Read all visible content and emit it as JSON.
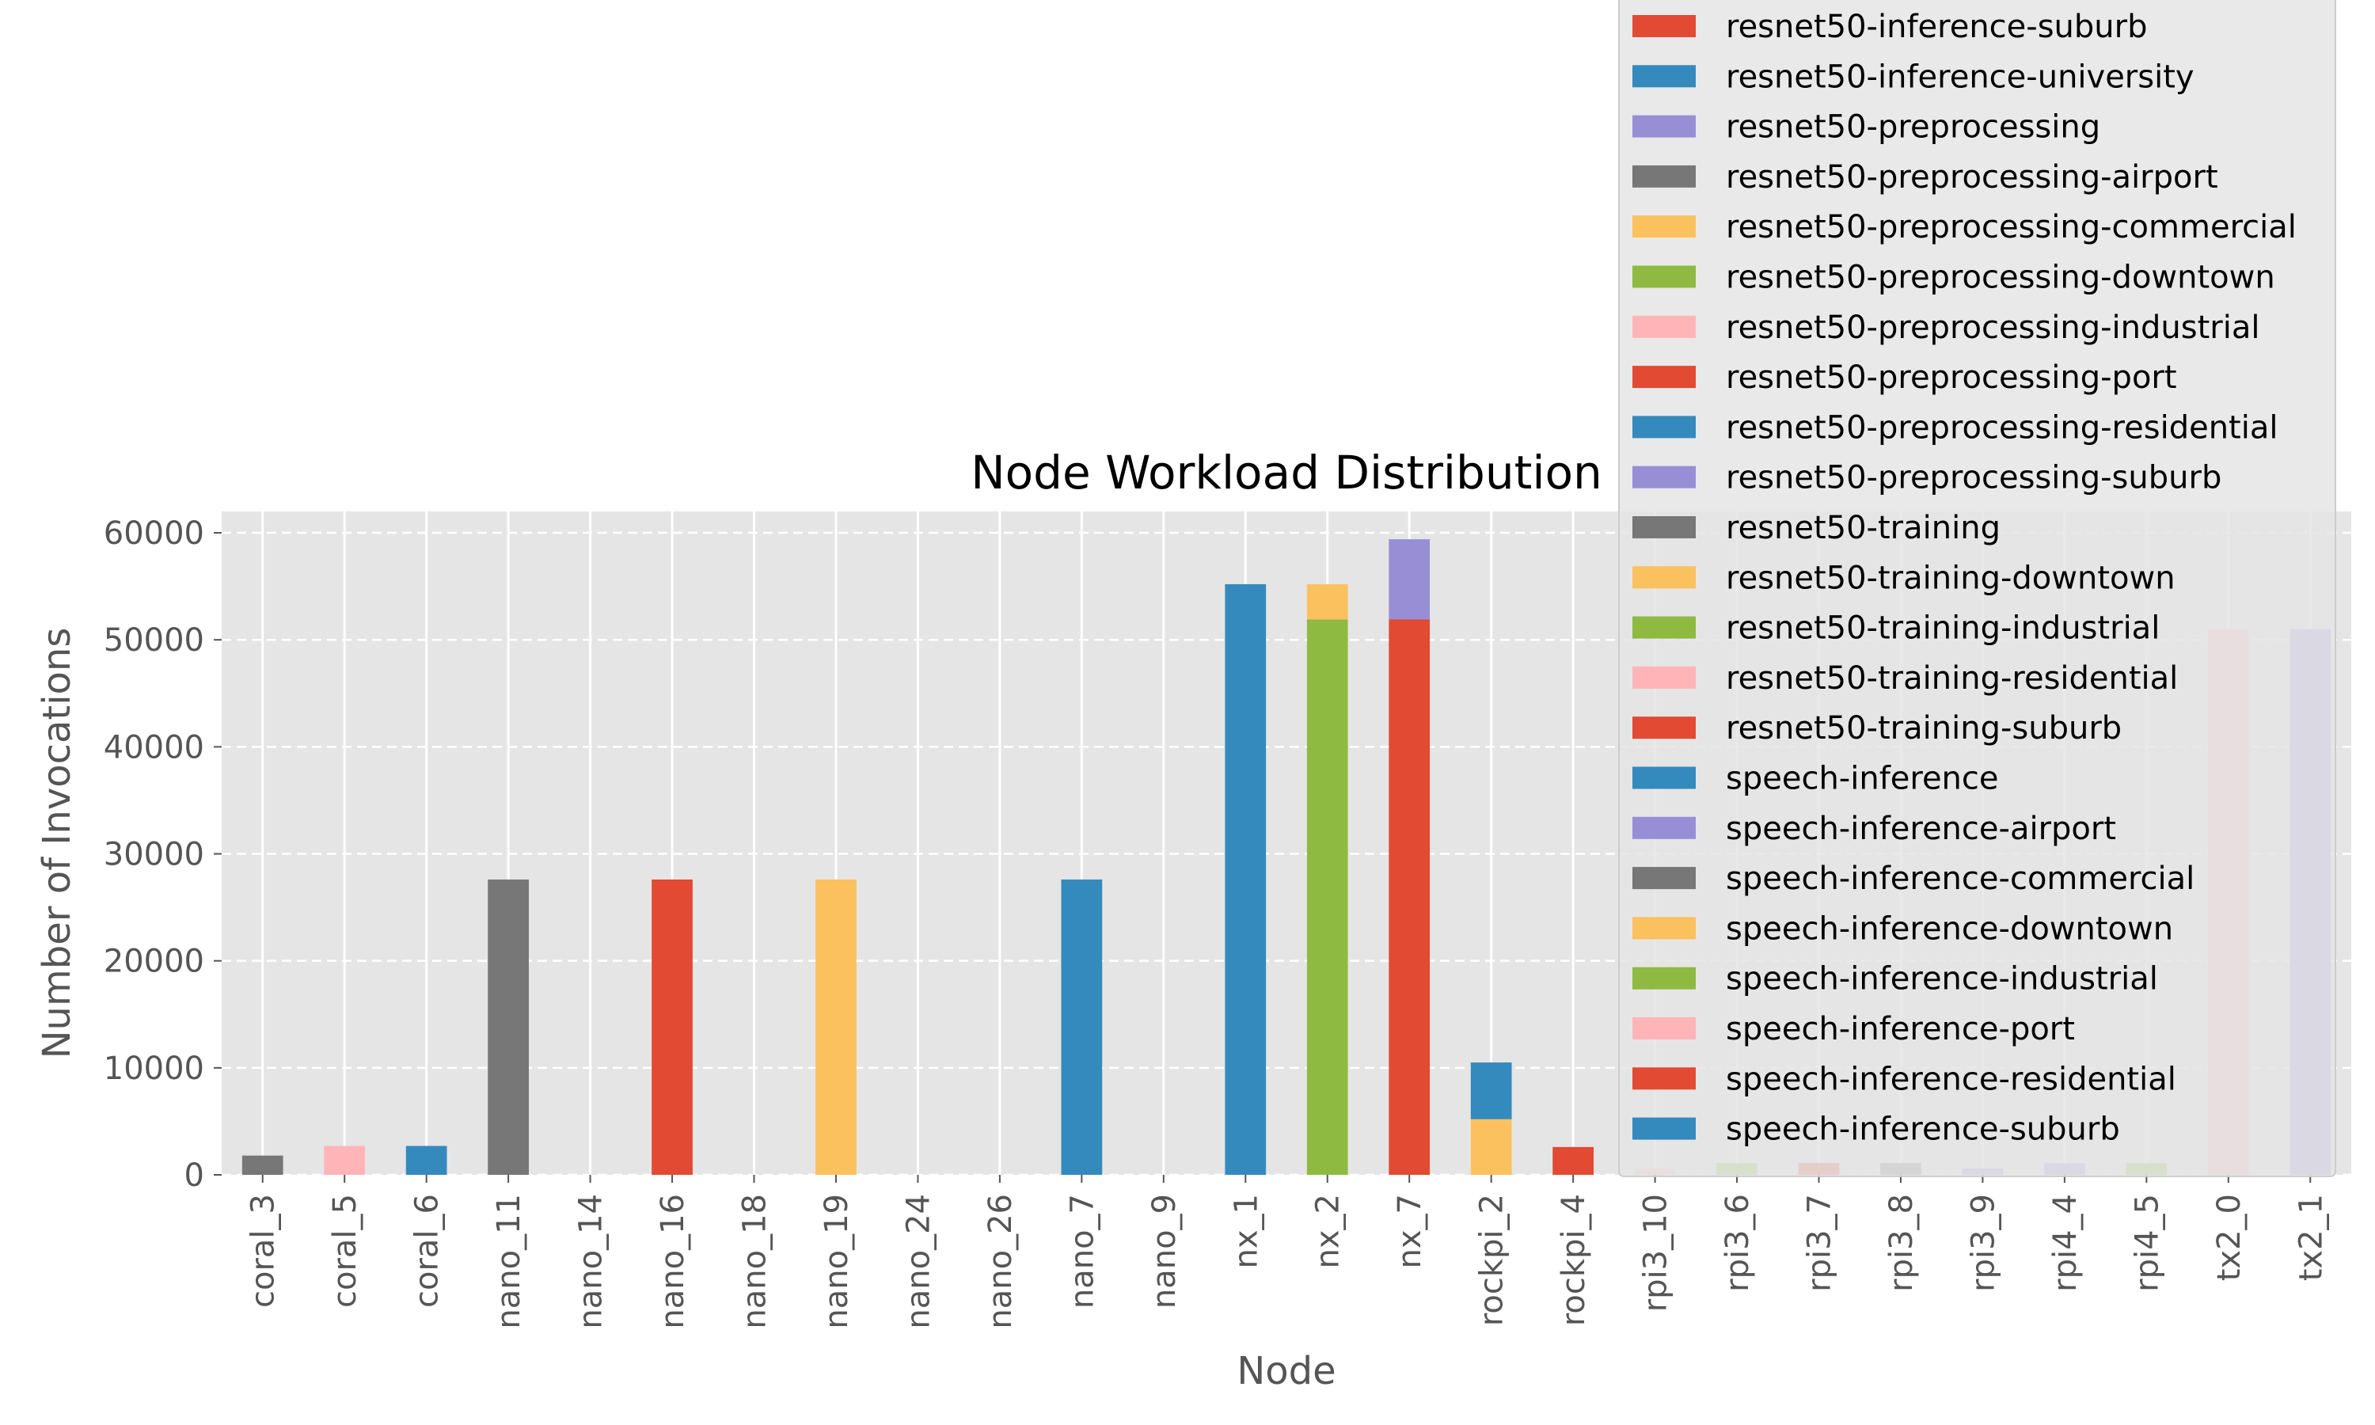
{
  "chart_data": {
    "type": "bar",
    "stacked": true,
    "title": "Node Workload Distribution",
    "xlabel": "Node",
    "ylabel": "Number of Invocations",
    "ylim": [
      0,
      62000
    ],
    "yticks": [
      0,
      10000,
      20000,
      30000,
      40000,
      50000,
      60000
    ],
    "grid": true,
    "legend_placement": "top-right",
    "categories": [
      "coral_3",
      "coral_5",
      "coral_6",
      "nano_11",
      "nano_14",
      "nano_16",
      "nano_18",
      "nano_19",
      "nano_24",
      "nano_26",
      "nano_7",
      "nano_9",
      "nx_1",
      "nx_2",
      "nx_7",
      "rockpi_2",
      "rockpi_4",
      "rpi3_10",
      "rpi3_6",
      "rpi3_7",
      "rpi3_8",
      "rpi3_9",
      "rpi4_4",
      "rpi4_5",
      "tx2_0",
      "tx2_1"
    ],
    "segments": [
      {
        "category": "coral_3",
        "bottom": 0,
        "top": 1800,
        "color": "#777777"
      },
      {
        "category": "coral_5",
        "bottom": 0,
        "top": 2700,
        "color": "#FFB5B8"
      },
      {
        "category": "coral_6",
        "bottom": 0,
        "top": 2700,
        "color": "#348ABD"
      },
      {
        "category": "nano_11",
        "bottom": 0,
        "top": 27600,
        "color": "#777777"
      },
      {
        "category": "nano_16",
        "bottom": 0,
        "top": 27600,
        "color": "#E24A33"
      },
      {
        "category": "nano_19",
        "bottom": 0,
        "top": 27600,
        "color": "#FBC15E"
      },
      {
        "category": "nano_7",
        "bottom": 0,
        "top": 27600,
        "color": "#348ABD"
      },
      {
        "category": "nx_1",
        "bottom": 0,
        "top": 55200,
        "color": "#348ABD"
      },
      {
        "category": "nx_2",
        "bottom": 0,
        "top": 51900,
        "color": "#8EBA42"
      },
      {
        "category": "nx_2",
        "bottom": 51900,
        "top": 55200,
        "color": "#FBC15E"
      },
      {
        "category": "nx_7",
        "bottom": 0,
        "top": 51900,
        "color": "#E24A33"
      },
      {
        "category": "nx_7",
        "bottom": 51900,
        "top": 59400,
        "color": "#988ED5"
      },
      {
        "category": "rockpi_2",
        "bottom": 0,
        "top": 5200,
        "color": "#FBC15E"
      },
      {
        "category": "rockpi_2",
        "bottom": 5200,
        "top": 10500,
        "color": "#348ABD"
      },
      {
        "category": "rockpi_4",
        "bottom": 0,
        "top": 2600,
        "color": "#E24A33"
      },
      {
        "category": "rpi3_10",
        "bottom": 0,
        "top": 600,
        "color": "#FFB5B8"
      },
      {
        "category": "rpi3_6",
        "bottom": 0,
        "top": 1100,
        "color": "#8EBA42"
      },
      {
        "category": "rpi3_7",
        "bottom": 0,
        "top": 1100,
        "color": "#E24A33"
      },
      {
        "category": "rpi3_8",
        "bottom": 0,
        "top": 1100,
        "color": "#777777"
      },
      {
        "category": "rpi3_9",
        "bottom": 0,
        "top": 600,
        "color": "#988ED5"
      },
      {
        "category": "rpi4_4",
        "bottom": 0,
        "top": 1100,
        "color": "#988ED5"
      },
      {
        "category": "rpi4_5",
        "bottom": 0,
        "top": 1100,
        "color": "#8EBA42"
      },
      {
        "category": "tx2_0",
        "bottom": 0,
        "top": 1500,
        "color": "#FFB5B8"
      },
      {
        "category": "tx2_0",
        "bottom": 1500,
        "top": 51000,
        "color": "#FFB5B8"
      },
      {
        "category": "tx2_1",
        "bottom": 0,
        "top": 1500,
        "color": "#988ED5"
      },
      {
        "category": "tx2_1",
        "bottom": 1500,
        "top": 51000,
        "color": "#988ED5"
      }
    ],
    "legend": [
      {
        "name": "resnet50-inference-suburb",
        "color": "#E24A33"
      },
      {
        "name": "resnet50-inference-university",
        "color": "#348ABD"
      },
      {
        "name": "resnet50-preprocessing",
        "color": "#988ED5"
      },
      {
        "name": "resnet50-preprocessing-airport",
        "color": "#777777"
      },
      {
        "name": "resnet50-preprocessing-commercial",
        "color": "#FBC15E"
      },
      {
        "name": "resnet50-preprocessing-downtown",
        "color": "#8EBA42"
      },
      {
        "name": "resnet50-preprocessing-industrial",
        "color": "#FFB5B8"
      },
      {
        "name": "resnet50-preprocessing-port",
        "color": "#E24A33"
      },
      {
        "name": "resnet50-preprocessing-residential",
        "color": "#348ABD"
      },
      {
        "name": "resnet50-preprocessing-suburb",
        "color": "#988ED5"
      },
      {
        "name": "resnet50-training",
        "color": "#777777"
      },
      {
        "name": "resnet50-training-downtown",
        "color": "#FBC15E"
      },
      {
        "name": "resnet50-training-industrial",
        "color": "#8EBA42"
      },
      {
        "name": "resnet50-training-residential",
        "color": "#FFB5B8"
      },
      {
        "name": "resnet50-training-suburb",
        "color": "#E24A33"
      },
      {
        "name": "speech-inference",
        "color": "#348ABD"
      },
      {
        "name": "speech-inference-airport",
        "color": "#988ED5"
      },
      {
        "name": "speech-inference-commercial",
        "color": "#777777"
      },
      {
        "name": "speech-inference-downtown",
        "color": "#FBC15E"
      },
      {
        "name": "speech-inference-industrial",
        "color": "#8EBA42"
      },
      {
        "name": "speech-inference-port",
        "color": "#FFB5B8"
      },
      {
        "name": "speech-inference-residential",
        "color": "#E24A33"
      },
      {
        "name": "speech-inference-suburb",
        "color": "#348ABD"
      }
    ]
  }
}
